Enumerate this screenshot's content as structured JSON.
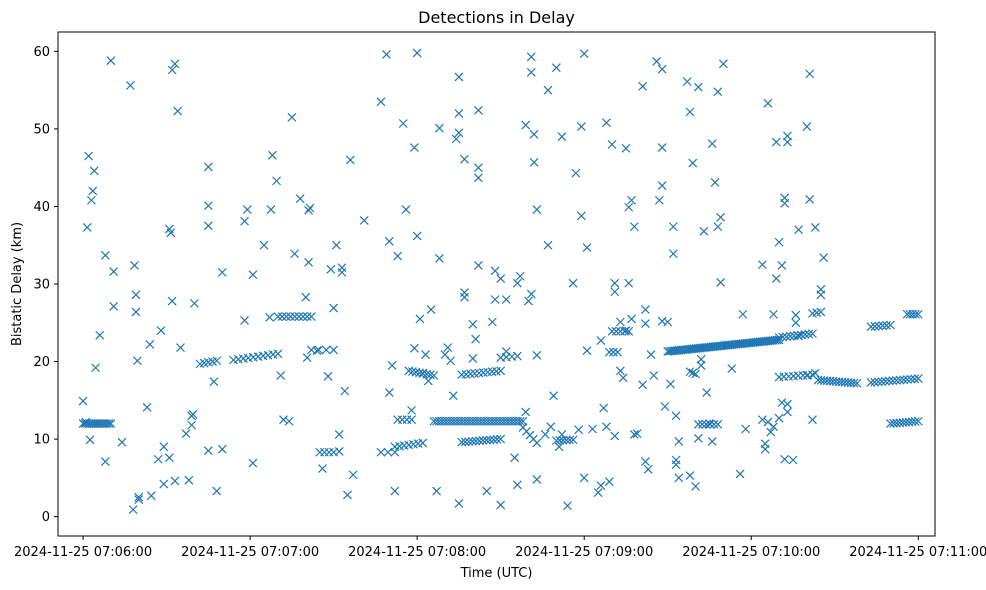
{
  "chart_data": {
    "type": "scatter",
    "title": "Detections in Delay",
    "xlabel": "Time (UTC)",
    "ylabel": "Bistatic Delay (km)",
    "marker": "x",
    "marker_color": "#1f77b4",
    "x_unit": "seconds after 2024-11-25 07:06:00",
    "xlim": [
      -9,
      306
    ],
    "ylim": [
      -2.5,
      62.5
    ],
    "xticks": [
      0,
      60,
      120,
      180,
      240,
      300
    ],
    "xtick_labels": [
      "2024-11-25 07:06:00",
      "2024-11-25 07:07:00",
      "2024-11-25 07:08:00",
      "2024-11-25 07:09:00",
      "2024-11-25 07:10:00",
      "2024-11-25 07:11:00"
    ],
    "yticks": [
      0,
      10,
      20,
      30,
      40,
      50,
      60
    ],
    "ytick_labels": [
      "0",
      "10",
      "20",
      "30",
      "40",
      "50",
      "60"
    ],
    "grid": false,
    "clusters": [
      {
        "x0": 0,
        "y0": 12,
        "x1": 10,
        "y1": 12,
        "n": 14
      },
      {
        "x0": 42,
        "y0": 19.7,
        "x1": 48,
        "y1": 20.1,
        "n": 5
      },
      {
        "x0": 54,
        "y0": 20.2,
        "x1": 70,
        "y1": 21,
        "n": 10
      },
      {
        "x0": 70,
        "y0": 25.8,
        "x1": 82,
        "y1": 25.8,
        "n": 9
      },
      {
        "x0": 82,
        "y0": 21.5,
        "x1": 90,
        "y1": 21.5,
        "n": 4
      },
      {
        "x0": 85,
        "y0": 8.3,
        "x1": 90,
        "y1": 8.3,
        "n": 4
      },
      {
        "x0": 107,
        "y0": 8.3,
        "x1": 112,
        "y1": 8.3,
        "n": 3
      },
      {
        "x0": 113,
        "y0": 12.5,
        "x1": 118,
        "y1": 12.5,
        "n": 4
      },
      {
        "x0": 112,
        "y0": 9,
        "x1": 122,
        "y1": 9.5,
        "n": 7
      },
      {
        "x0": 117,
        "y0": 18.8,
        "x1": 126,
        "y1": 18.2,
        "n": 8
      },
      {
        "x0": 126,
        "y0": 12.3,
        "x1": 158,
        "y1": 12.3,
        "n": 34
      },
      {
        "x0": 136,
        "y0": 9.6,
        "x1": 150,
        "y1": 10,
        "n": 12
      },
      {
        "x0": 136,
        "y0": 18.3,
        "x1": 150,
        "y1": 18.8,
        "n": 10
      },
      {
        "x0": 150,
        "y0": 20.5,
        "x1": 156,
        "y1": 20.7,
        "n": 4
      },
      {
        "x0": 158,
        "y0": 11.5,
        "x1": 163,
        "y1": 9.5,
        "n": 5
      },
      {
        "x0": 170,
        "y0": 9.8,
        "x1": 176,
        "y1": 9.9,
        "n": 6
      },
      {
        "x0": 189,
        "y0": 21.2,
        "x1": 192,
        "y1": 21.2,
        "n": 3
      },
      {
        "x0": 190,
        "y0": 23.9,
        "x1": 196,
        "y1": 23.9,
        "n": 5
      },
      {
        "x0": 210,
        "y0": 21.3,
        "x1": 250,
        "y1": 22.8,
        "n": 60
      },
      {
        "x0": 218,
        "y0": 18.7,
        "x1": 220,
        "y1": 18.4,
        "n": 3
      },
      {
        "x0": 221,
        "y0": 11.9,
        "x1": 228,
        "y1": 11.9,
        "n": 6
      },
      {
        "x0": 250,
        "y0": 23.1,
        "x1": 262,
        "y1": 23.6,
        "n": 10
      },
      {
        "x0": 250,
        "y0": 18,
        "x1": 262,
        "y1": 18.3,
        "n": 8
      },
      {
        "x0": 262,
        "y0": 26.2,
        "x1": 265,
        "y1": 26.4,
        "n": 3
      },
      {
        "x0": 264,
        "y0": 17.6,
        "x1": 278,
        "y1": 17.2,
        "n": 14
      },
      {
        "x0": 283,
        "y0": 24.5,
        "x1": 290,
        "y1": 24.7,
        "n": 6
      },
      {
        "x0": 283,
        "y0": 17.3,
        "x1": 300,
        "y1": 17.8,
        "n": 14
      },
      {
        "x0": 290,
        "y0": 12,
        "x1": 300,
        "y1": 12.3,
        "n": 10
      },
      {
        "x0": 296,
        "y0": 26.1,
        "x1": 300,
        "y1": 26.1,
        "n": 5
      }
    ],
    "scatter": [
      [
        0,
        14.9
      ],
      [
        1,
        12.2
      ],
      [
        1.5,
        37.3
      ],
      [
        2,
        46.5
      ],
      [
        2.5,
        9.9
      ],
      [
        3,
        40.8
      ],
      [
        3.5,
        42
      ],
      [
        4,
        44.6
      ],
      [
        4.5,
        19.2
      ],
      [
        6,
        23.4
      ],
      [
        8,
        7.1
      ],
      [
        8,
        33.7
      ],
      [
        10,
        58.8
      ],
      [
        11,
        31.6
      ],
      [
        11,
        27.1
      ],
      [
        14,
        9.6
      ],
      [
        17,
        55.6
      ],
      [
        18,
        0.9
      ],
      [
        18.5,
        32.4
      ],
      [
        19,
        28.6
      ],
      [
        19,
        26.4
      ],
      [
        19.5,
        20.1
      ],
      [
        20,
        2.5
      ],
      [
        20,
        2.2
      ],
      [
        23,
        14.1
      ],
      [
        24,
        22.2
      ],
      [
        24.5,
        2.7
      ],
      [
        27,
        7.4
      ],
      [
        28,
        24
      ],
      [
        29,
        9
      ],
      [
        29,
        4.2
      ],
      [
        31,
        7.6
      ],
      [
        31,
        37.1
      ],
      [
        31.5,
        36.6
      ],
      [
        32,
        57.6
      ],
      [
        32,
        27.8
      ],
      [
        33,
        4.6
      ],
      [
        33,
        58.4
      ],
      [
        34,
        52.3
      ],
      [
        35,
        21.8
      ],
      [
        37,
        10.7
      ],
      [
        38,
        4.7
      ],
      [
        39,
        13
      ],
      [
        39,
        11.8
      ],
      [
        39.5,
        13.2
      ],
      [
        40,
        27.5
      ],
      [
        45,
        45.1
      ],
      [
        45,
        40.1
      ],
      [
        45,
        37.5
      ],
      [
        45,
        8.5
      ],
      [
        47,
        17.4
      ],
      [
        48,
        3.3
      ],
      [
        50,
        8.7
      ],
      [
        50,
        31.5
      ],
      [
        58,
        25.3
      ],
      [
        58,
        38.1
      ],
      [
        59,
        39.6
      ],
      [
        61,
        31.2
      ],
      [
        61,
        6.9
      ],
      [
        65,
        35
      ],
      [
        67,
        25.7
      ],
      [
        67.5,
        39.6
      ],
      [
        68,
        46.6
      ],
      [
        69.5,
        43.3
      ],
      [
        71,
        18.2
      ],
      [
        72,
        12.5
      ],
      [
        74,
        12.3
      ],
      [
        75,
        51.5
      ],
      [
        76,
        33.9
      ],
      [
        78,
        41
      ],
      [
        80,
        28.3
      ],
      [
        80.5,
        20.5
      ],
      [
        81,
        32.8
      ],
      [
        81,
        39.5
      ],
      [
        81.5,
        39.8
      ],
      [
        84,
        21.4
      ],
      [
        86,
        6.2
      ],
      [
        88,
        18.1
      ],
      [
        89,
        31.9
      ],
      [
        90,
        26.9
      ],
      [
        91,
        35
      ],
      [
        92,
        10.6
      ],
      [
        92,
        8.4
      ],
      [
        93,
        32.1
      ],
      [
        93,
        31.5
      ],
      [
        94,
        16.2
      ],
      [
        95,
        2.8
      ],
      [
        96,
        46
      ],
      [
        97,
        5.4
      ],
      [
        101,
        38.2
      ],
      [
        107,
        53.5
      ],
      [
        109,
        59.6
      ],
      [
        110,
        35.5
      ],
      [
        110,
        16
      ],
      [
        111,
        19.5
      ],
      [
        112,
        3.3
      ],
      [
        113,
        33.6
      ],
      [
        115,
        50.7
      ],
      [
        116,
        39.6
      ],
      [
        118,
        13.7
      ],
      [
        119,
        21.7
      ],
      [
        119,
        47.6
      ],
      [
        120,
        36.2
      ],
      [
        120,
        59.8
      ],
      [
        121,
        25.5
      ],
      [
        122,
        18.5
      ],
      [
        123,
        20.9
      ],
      [
        124,
        17.5
      ],
      [
        125,
        26.7
      ],
      [
        127,
        3.3
      ],
      [
        128,
        33.3
      ],
      [
        128,
        50.1
      ],
      [
        130,
        20.9
      ],
      [
        131,
        21.8
      ],
      [
        132,
        20.1
      ],
      [
        133,
        15.6
      ],
      [
        134,
        48.7
      ],
      [
        135,
        1.7
      ],
      [
        135,
        56.7
      ],
      [
        135,
        52
      ],
      [
        135,
        49.5
      ],
      [
        137,
        46.1
      ],
      [
        137,
        28.9
      ],
      [
        137,
        28.3
      ],
      [
        140,
        24.8
      ],
      [
        140,
        20.4
      ],
      [
        141,
        22.9
      ],
      [
        142,
        45
      ],
      [
        142,
        43.7
      ],
      [
        142,
        52.4
      ],
      [
        142,
        32.4
      ],
      [
        145,
        3.3
      ],
      [
        147,
        25.1
      ],
      [
        148,
        28
      ],
      [
        148,
        31.7
      ],
      [
        150,
        30.7
      ],
      [
        150,
        1.5
      ],
      [
        152,
        28
      ],
      [
        152,
        21.3
      ],
      [
        155,
        7.6
      ],
      [
        156,
        4.1
      ],
      [
        156,
        30.1
      ],
      [
        157,
        31
      ],
      [
        159,
        13.5
      ],
      [
        159,
        50.5
      ],
      [
        160,
        27.8
      ],
      [
        161,
        28.7
      ],
      [
        161,
        57.3
      ],
      [
        161,
        59.3
      ],
      [
        162,
        49.3
      ],
      [
        162,
        45.7
      ],
      [
        163,
        4.8
      ],
      [
        163,
        39.6
      ],
      [
        163,
        20.8
      ],
      [
        166,
        10.6
      ],
      [
        167,
        35
      ],
      [
        167,
        55
      ],
      [
        168,
        11.6
      ],
      [
        169,
        15.6
      ],
      [
        170,
        57.9
      ],
      [
        171,
        9
      ],
      [
        172,
        49
      ],
      [
        172,
        10.6
      ],
      [
        174,
        1.4
      ],
      [
        176,
        30.1
      ],
      [
        177,
        44.3
      ],
      [
        178,
        11.2
      ],
      [
        179,
        50.3
      ],
      [
        179,
        38.8
      ],
      [
        180,
        5
      ],
      [
        180,
        59.7
      ],
      [
        181,
        34.7
      ],
      [
        181,
        21.4
      ],
      [
        183,
        11.3
      ],
      [
        185,
        3.1
      ],
      [
        186,
        4
      ],
      [
        186,
        22.7
      ],
      [
        187,
        14
      ],
      [
        188,
        11.6
      ],
      [
        188,
        50.8
      ],
      [
        189,
        4.5
      ],
      [
        190,
        48
      ],
      [
        191,
        10.4
      ],
      [
        191,
        29
      ],
      [
        191,
        30.1
      ],
      [
        193,
        18.8
      ],
      [
        193,
        25.1
      ],
      [
        194,
        17.9
      ],
      [
        195,
        47.5
      ],
      [
        195,
        24
      ],
      [
        196,
        39.9
      ],
      [
        196,
        30.1
      ],
      [
        197,
        40.8
      ],
      [
        197,
        25.5
      ],
      [
        198,
        37.4
      ],
      [
        198,
        10.6
      ],
      [
        199,
        10.7
      ],
      [
        201,
        17
      ],
      [
        201,
        55.5
      ],
      [
        202,
        24.9
      ],
      [
        202,
        26.7
      ],
      [
        202,
        7.1
      ],
      [
        203,
        6.1
      ],
      [
        204,
        20.9
      ],
      [
        205,
        18.2
      ],
      [
        206,
        58.7
      ],
      [
        207,
        40.8
      ],
      [
        208,
        57.7
      ],
      [
        208,
        42.7
      ],
      [
        208,
        47.6
      ],
      [
        208,
        25.2
      ],
      [
        209,
        14.2
      ],
      [
        210,
        25.1
      ],
      [
        211,
        17.1
      ],
      [
        212,
        37.4
      ],
      [
        212,
        33.9
      ],
      [
        213,
        13
      ],
      [
        213,
        6.7
      ],
      [
        213,
        7.3
      ],
      [
        214,
        5
      ],
      [
        214,
        9.7
      ],
      [
        217,
        56.1
      ],
      [
        218,
        52.2
      ],
      [
        218,
        5.3
      ],
      [
        219,
        45.6
      ],
      [
        220,
        3.9
      ],
      [
        221,
        10.1
      ],
      [
        221,
        55.4
      ],
      [
        222,
        20.3
      ],
      [
        222,
        19.5
      ],
      [
        223,
        36.8
      ],
      [
        224,
        16
      ],
      [
        225,
        12
      ],
      [
        226,
        48.1
      ],
      [
        226,
        9.7
      ],
      [
        227,
        43.1
      ],
      [
        228,
        54.8
      ],
      [
        228,
        37.4
      ],
      [
        229,
        30.2
      ],
      [
        229,
        38.6
      ],
      [
        230,
        58.4
      ],
      [
        233,
        19.1
      ],
      [
        236,
        5.5
      ],
      [
        237,
        26.1
      ],
      [
        238,
        11.3
      ],
      [
        244,
        32.5
      ],
      [
        244,
        12.5
      ],
      [
        245,
        8.7
      ],
      [
        245,
        9.4
      ],
      [
        246,
        53.3
      ],
      [
        246,
        12.2
      ],
      [
        247,
        10.9
      ],
      [
        248,
        11.6
      ],
      [
        248,
        26.1
      ],
      [
        249,
        30.7
      ],
      [
        249,
        48.3
      ],
      [
        250,
        35.4
      ],
      [
        250,
        12.7
      ],
      [
        251,
        32.4
      ],
      [
        251,
        14.7
      ],
      [
        252,
        40.4
      ],
      [
        252,
        41.1
      ],
      [
        252,
        7.4
      ],
      [
        253,
        13.5
      ],
      [
        253,
        14.5
      ],
      [
        253,
        48.3
      ],
      [
        253,
        49.1
      ],
      [
        255,
        7.3
      ],
      [
        256,
        26
      ],
      [
        256,
        25
      ],
      [
        257,
        37
      ],
      [
        257,
        23.3
      ],
      [
        260,
        50.3
      ],
      [
        260,
        18.2
      ],
      [
        261,
        57.1
      ],
      [
        261,
        40.9
      ],
      [
        262,
        12.5
      ],
      [
        263,
        37.3
      ],
      [
        263,
        18.5
      ],
      [
        265,
        28.6
      ],
      [
        265,
        29.3
      ],
      [
        266,
        33.4
      ]
    ]
  }
}
